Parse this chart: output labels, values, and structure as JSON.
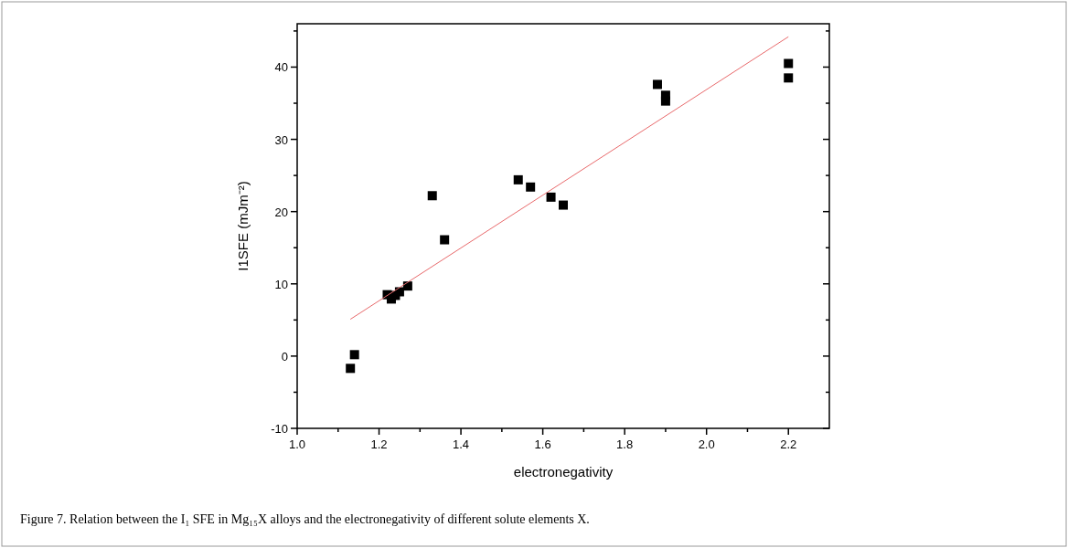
{
  "chart_data": {
    "type": "scatter",
    "xlabel": "electronegativity",
    "ylabel": "I1SFE (mJm⁻²)",
    "xlim": [
      1.0,
      2.3
    ],
    "ylim": [
      -10,
      46
    ],
    "xticks": [
      {
        "value": 1,
        "label": "1.0"
      },
      {
        "value": 1.1,
        "label": null
      },
      1.2,
      {
        "value": 1.3,
        "label": null
      },
      1.4,
      {
        "value": 1.5,
        "label": null
      },
      1.6,
      {
        "value": 1.7,
        "label": null
      },
      1.8,
      {
        "value": 1.9,
        "label": null
      },
      {
        "value": 2,
        "label": "2.0"
      },
      {
        "value": 2.1,
        "label": null
      },
      2.2
    ],
    "yticks": [
      -10,
      {
        "value": -5,
        "label": null
      },
      0,
      {
        "value": 5,
        "label": null
      },
      10,
      {
        "value": 15,
        "label": null
      },
      20,
      {
        "value": 25,
        "label": null
      },
      30,
      {
        "value": 35,
        "label": null
      },
      40,
      {
        "value": 45,
        "label": null
      }
    ],
    "grid": false,
    "series": [
      {
        "color": "#000000",
        "marker": "square",
        "x": [
          1.13,
          1.14,
          1.22,
          1.23,
          1.24,
          1.25,
          1.27,
          1.33,
          1.36,
          1.54,
          1.57,
          1.62,
          1.65,
          1.88,
          1.9,
          1.9,
          2.2,
          2.2
        ],
        "values": [
          -1.7,
          0.2,
          8.5,
          7.9,
          8.4,
          8.9,
          9.7,
          22.2,
          16.1,
          24.4,
          23.4,
          22.0,
          20.9,
          37.6,
          36.1,
          35.3,
          40.5,
          38.5
        ]
      },
      {
        "type": "line",
        "color": "#e8696b",
        "x": [
          1.13,
          2.2
        ],
        "values": [
          5.1,
          44.2
        ]
      }
    ],
    "annotations": [
      "Figure 7. Relation between the I₁ SFE in Mg₁₅X alloys and the electronegativity of different solute elements X."
    ]
  }
}
